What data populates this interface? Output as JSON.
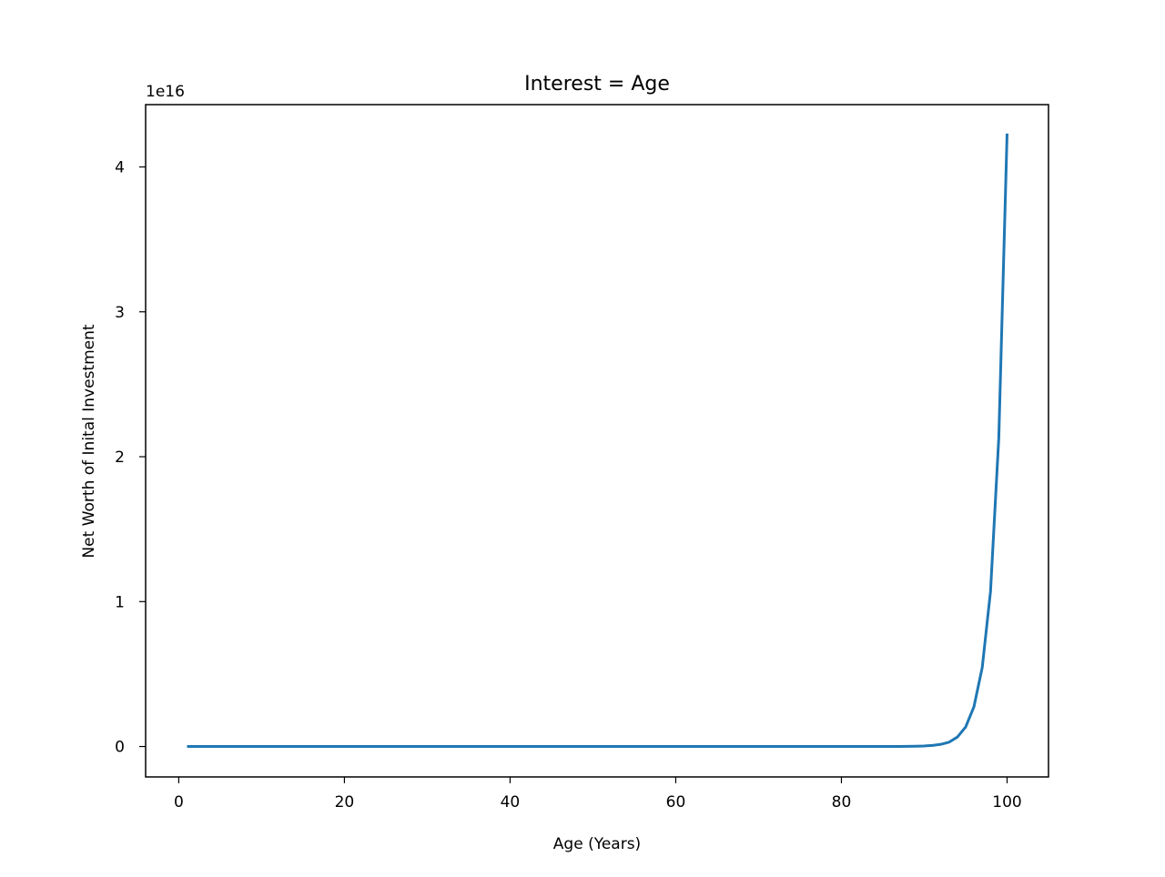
{
  "chart_data": {
    "type": "line",
    "title": "Interest = Age",
    "xlabel": "Age (Years)",
    "ylabel": "Net Worth of Inital Investment",
    "y_offset_label": "1e16",
    "xlim": [
      -4,
      105
    ],
    "ylim": [
      -0.21,
      4.43
    ],
    "y_units_multiplier": 1e+16,
    "x_ticks": [
      0,
      20,
      40,
      60,
      80,
      100
    ],
    "x_tick_labels": [
      "0",
      "20",
      "40",
      "60",
      "80",
      "100"
    ],
    "y_ticks": [
      0,
      1,
      2,
      3,
      4
    ],
    "y_tick_labels": [
      "0",
      "1",
      "2",
      "3",
      "4"
    ],
    "grid": false,
    "legend": "none",
    "series": [
      {
        "color": "#1f77b4",
        "x": [
          1,
          86,
          87,
          88,
          89,
          90,
          91,
          92,
          93,
          94,
          95,
          96,
          97,
          98,
          99,
          100
        ],
        "y": [
          0,
          0.0,
          0.0005,
          0.001,
          0.0019,
          0.0037,
          0.0075,
          0.015,
          0.03,
          0.065,
          0.135,
          0.275,
          0.545,
          1.07,
          2.13,
          4.23
        ]
      }
    ]
  }
}
